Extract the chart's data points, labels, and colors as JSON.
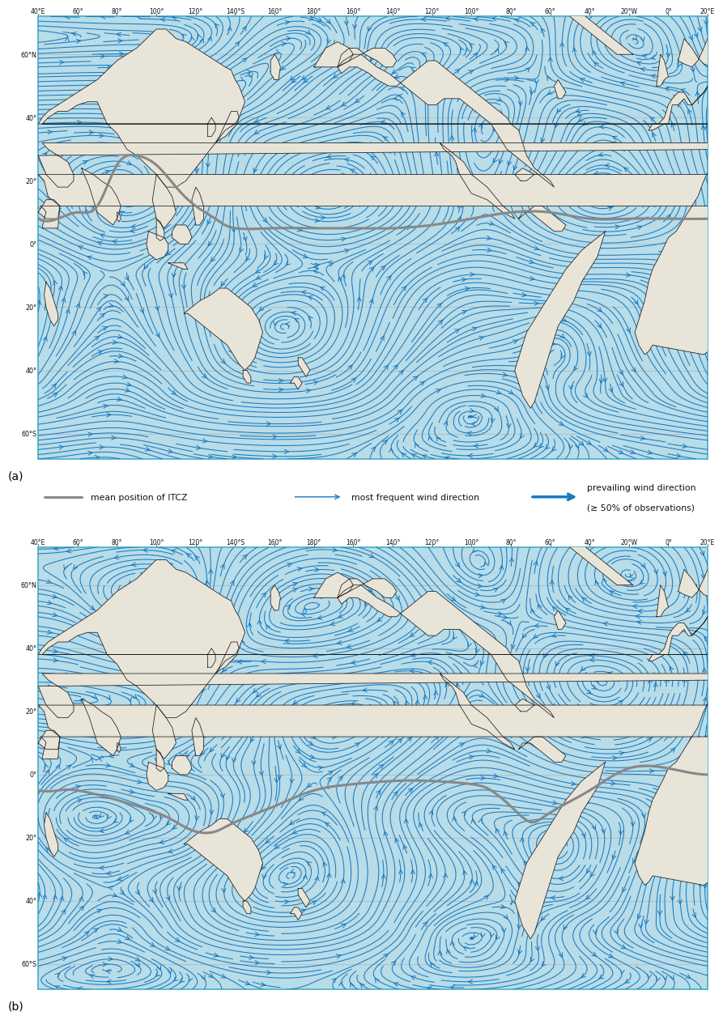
{
  "figure_bg": "#ffffff",
  "map_bg": "#b8dce8",
  "land_color": "#e8e4d8",
  "border_color": "#1a1a1a",
  "stream_color": "#1a7abf",
  "itcz_color": "#888888",
  "panel_a_label": "(a)",
  "panel_b_label": "(b)",
  "lon_min": 35,
  "lon_max": 25,
  "lat_min": -68,
  "lat_max": 72,
  "lon_tick_labels": [
    "40°E",
    "60°",
    "80°",
    "100°",
    "120°",
    "140°S",
    "160°",
    "180°",
    "160°",
    "140°",
    "120°",
    "100°",
    "80°",
    "60°",
    "40°",
    "20°W",
    "0°",
    "20°E"
  ],
  "lon_tick_vals": [
    40,
    60,
    80,
    100,
    120,
    140,
    160,
    180,
    200,
    220,
    240,
    260,
    280,
    300,
    320,
    340,
    360,
    380
  ],
  "lat_tick_labels": [
    "60°N",
    "40°",
    "20°",
    "0°",
    "20°",
    "40°",
    "60°S"
  ],
  "lat_tick_vals": [
    60,
    40,
    20,
    0,
    -20,
    -40,
    -60
  ],
  "legend_itcz": "mean position of ITCZ",
  "legend_freq": "most frequent wind direction",
  "legend_prev": "prevailing wind direction\n(≥ 50% of observations)"
}
